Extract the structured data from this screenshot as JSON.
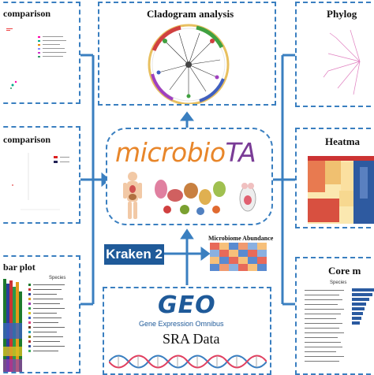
{
  "panels": {
    "top_left_title": "comparison",
    "mid_left_title": "comparison",
    "bottom_left_title": "bar plot",
    "top_center_title": "Cladogram analysis",
    "top_right_title": "Phylog",
    "mid_right_title": "Heatma",
    "bottom_right_title": "Core m"
  },
  "center": {
    "logo_prefix": "microbio",
    "logo_suffix": "TA",
    "abundance_label": "Microbiome Abundance"
  },
  "kraken_label": "Kraken 2",
  "geo": {
    "logo": "GEO",
    "subtitle": "Gene Expression Omnibus",
    "sra": "SRA Data"
  },
  "mini_legends": {
    "barplot_header": "Species",
    "core_header": "Species"
  },
  "colors": {
    "border": "#3a7fc0",
    "logo_orange": "#e8862a",
    "logo_purple": "#7a3c96",
    "kraken_bg": "#1f5a99"
  }
}
